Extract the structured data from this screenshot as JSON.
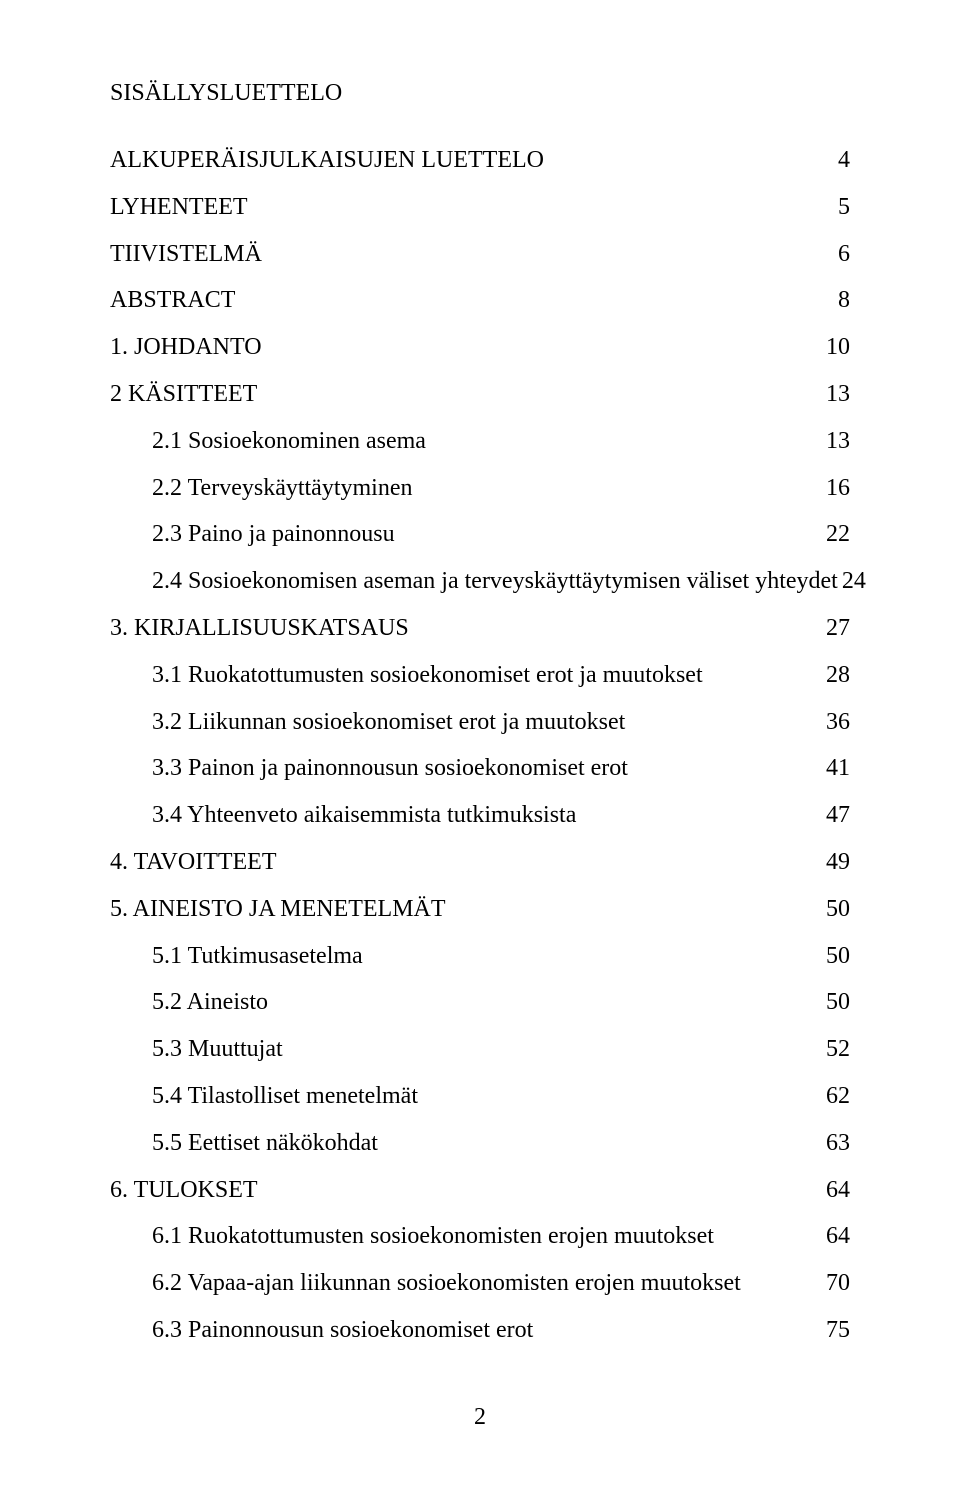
{
  "title": "SISÄLLYSLUETTELO",
  "entries": [
    {
      "label": "ALKUPERÄISJULKAISUJEN LUETTELO",
      "page": "4",
      "indented": false
    },
    {
      "label": "LYHENTEET",
      "page": "5",
      "indented": false
    },
    {
      "label": "TIIVISTELMÄ",
      "page": "6",
      "indented": false
    },
    {
      "label": "ABSTRACT",
      "page": "8",
      "indented": false
    },
    {
      "label": "1. JOHDANTO",
      "page": "10",
      "indented": false
    },
    {
      "label": "2 KÄSITTEET",
      "page": "13",
      "indented": false
    },
    {
      "label": "2.1 Sosioekonominen asema",
      "page": " 13",
      "indented": true
    },
    {
      "label": "2.2 Terveyskäyttäytyminen",
      "page": " 16",
      "indented": true
    },
    {
      "label": "2.3 Paino ja painonnousu",
      "page": " 22",
      "indented": true
    },
    {
      "label": "2.4 Sosioekonomisen aseman ja terveyskäyttäytymisen väliset yhteydet",
      "page": " 24",
      "indented": true
    },
    {
      "label": "3. KIRJALLISUUSKATSAUS",
      "page": "27",
      "indented": false
    },
    {
      "label": "3.1 Ruokatottumusten sosioekonomiset erot ja muutokset",
      "page": " 28",
      "indented": true
    },
    {
      "label": "3.2 Liikunnan sosioekonomiset erot ja muutokset",
      "page": " 36",
      "indented": true
    },
    {
      "label": "3.3 Painon ja painonnousun sosioekonomiset erot",
      "page": " 41",
      "indented": true
    },
    {
      "label": "3.4 Yhteenveto aikaisemmista tutkimuksista",
      "page": " 47",
      "indented": true
    },
    {
      "label": "4. TAVOITTEET",
      "page": "49",
      "indented": false
    },
    {
      "label": "5. AINEISTO JA MENETELMÄT",
      "page": "50",
      "indented": false
    },
    {
      "label": "5.1 Tutkimusasetelma",
      "page": " 50",
      "indented": true
    },
    {
      "label": "5.2 Aineisto",
      "page": " 50",
      "indented": true
    },
    {
      "label": "5.3 Muuttujat",
      "page": " 52",
      "indented": true
    },
    {
      "label": "5.4 Tilastolliset menetelmät",
      "page": " 62",
      "indented": true
    },
    {
      "label": "5.5 Eettiset näkökohdat",
      "page": " 63",
      "indented": true
    },
    {
      "label": "6. TULOKSET",
      "page": "64",
      "indented": false
    },
    {
      "label": "6.1 Ruokatottumusten sosioekonomisten erojen muutokset",
      "page": " 64",
      "indented": true
    },
    {
      "label": "6.2 Vapaa-ajan liikunnan sosioekonomisten erojen muutokset",
      "page": " 70",
      "indented": true
    },
    {
      "label": "6.3 Painonnousun sosioekonomiset erot",
      "page": " 75",
      "indented": true
    }
  ],
  "pageNumber": "2"
}
